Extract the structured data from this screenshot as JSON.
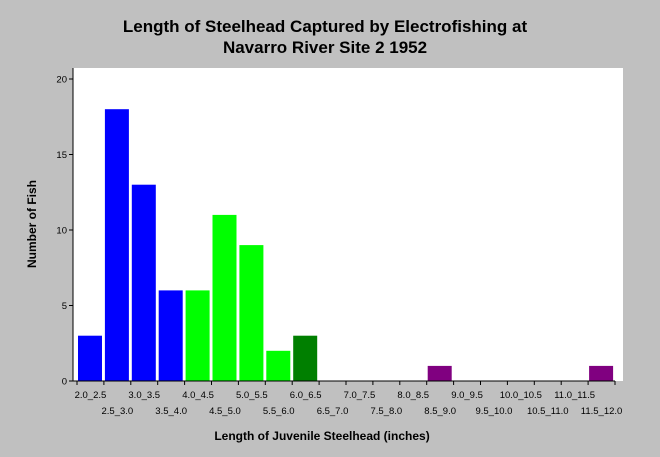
{
  "chart_data": {
    "type": "bar",
    "title": [
      "Length of Steelhead Captured by Electrofishing at",
      "Navarro River Site 2 1952"
    ],
    "xlabel": "Length of Juvenile Steelhead (inches)",
    "ylabel": "Number of Fish",
    "ylim": [
      0,
      20
    ],
    "yticks": [
      0,
      5,
      10,
      15,
      20
    ],
    "grid": false,
    "categories": [
      "2.0_2.5",
      "2.5_3.0",
      "3.0_3.5",
      "3.5_4.0",
      "4.0_4.5",
      "4.5_5.0",
      "5.0_5.5",
      "5.5_6.0",
      "6.0_6.5",
      "6.5_7.0",
      "7.0_7.5",
      "7.5_8.0",
      "8.0_8.5",
      "8.5_9.0",
      "9.0_9.5",
      "9.5_10.0",
      "10.0_10.5",
      "10.5_11.0",
      "11.0_11.5",
      "11.5_12.0"
    ],
    "values": [
      3,
      18,
      13,
      6,
      6,
      11,
      9,
      2,
      3,
      0,
      0,
      0,
      0,
      1,
      0,
      0,
      0,
      0,
      0,
      1
    ],
    "bar_colors": [
      "#0000ff",
      "#0000ff",
      "#0000ff",
      "#0000ff",
      "#00ff00",
      "#00ff00",
      "#00ff00",
      "#00ff00",
      "#007f00",
      "#800080",
      "#800080",
      "#800080",
      "#800080",
      "#800080",
      "#800080",
      "#800080",
      "#800080",
      "#800080",
      "#800080",
      "#800080"
    ]
  }
}
